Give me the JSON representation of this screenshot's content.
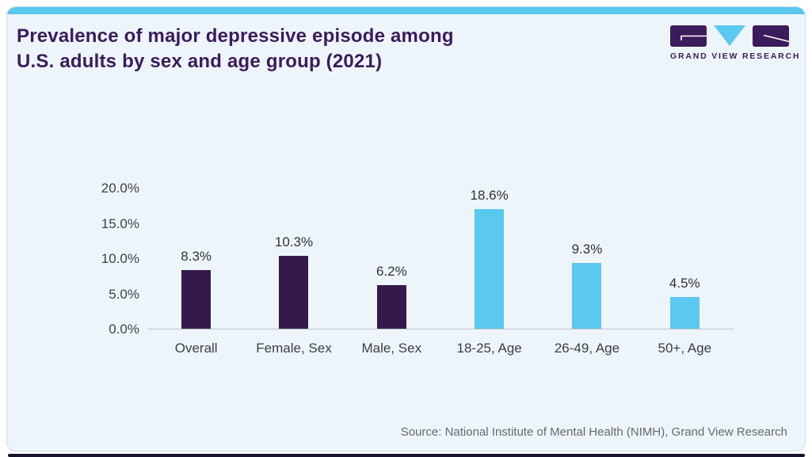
{
  "header": {
    "title_line1": "Prevalence of major depressive episode among",
    "title_line2": "U.S. adults by sex and age group (2021)",
    "brand_name": "GRAND VIEW RESEARCH"
  },
  "footer": {
    "source": "Source: National Institute of Mental Health (NIMH), Grand View Research"
  },
  "colors": {
    "accent_blue": "#5ac8ee",
    "brand_purple": "#3a1c5c",
    "bar_purple": "#341a4b",
    "bar_blue": "#5bc8f0",
    "card_background": "#eef5fa",
    "bottom_strip": "#16132e"
  },
  "chart_data": {
    "type": "bar",
    "title": "Prevalence of major depressive episode among U.S. adults by sex and age group (2021)",
    "categories": [
      "Overall",
      "Female, Sex",
      "Male, Sex",
      "18-25, Age",
      "26-49, Age",
      "50+, Age"
    ],
    "values": [
      8.3,
      10.3,
      6.2,
      18.6,
      9.3,
      4.5
    ],
    "value_labels": [
      "8.3%",
      "10.3%",
      "6.2%",
      "18.6%",
      "9.3%",
      "4.5%"
    ],
    "bar_colors": [
      "#341a4b",
      "#341a4b",
      "#341a4b",
      "#5bc8f0",
      "#5bc8f0",
      "#5bc8f0"
    ],
    "yticks": [
      "20.0%",
      "15.0%",
      "10.0%",
      "5.0%",
      "0.0%"
    ],
    "ylim": [
      0,
      20
    ],
    "xlabel": "",
    "ylabel": "",
    "grid": false,
    "legend": false,
    "source": "Source: National Institute of Mental Health (NIMH), Grand View Research"
  }
}
